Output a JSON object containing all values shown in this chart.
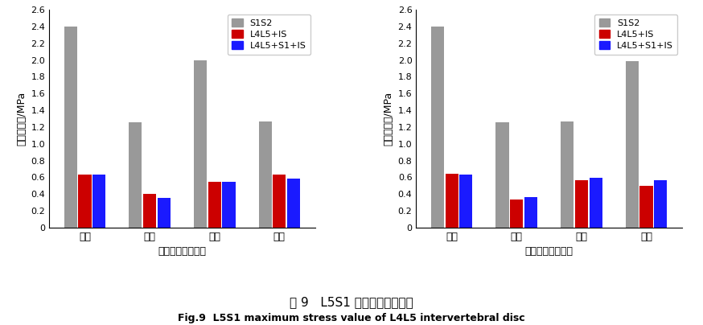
{
  "left_chart": {
    "title": "坐姿下最大应力值",
    "categories": [
      "前屈",
      "后伸",
      "左旋",
      "左弯"
    ],
    "S1S2": [
      2.4,
      1.26,
      2.0,
      1.27
    ],
    "L4L5_IS": [
      0.63,
      0.4,
      0.55,
      0.63
    ],
    "L4L5_S1_IS": [
      0.63,
      0.35,
      0.55,
      0.58
    ]
  },
  "right_chart": {
    "title": "站姿下最大应力值",
    "categories": [
      "前屈",
      "后伸",
      "左旋",
      "左弯"
    ],
    "S1S2": [
      2.4,
      1.26,
      1.27,
      1.99
    ],
    "L4L5_IS": [
      0.64,
      0.33,
      0.56,
      0.5
    ],
    "L4L5_S1_IS": [
      0.63,
      0.36,
      0.59,
      0.56
    ]
  },
  "legend_labels": [
    "S1S2",
    "L4L5+IS",
    "L4L5+S1+IS"
  ],
  "bar_colors": [
    "#999999",
    "#cc0000",
    "#1a1aff"
  ],
  "ylabel": "最大应力值/MPa",
  "ylim": [
    0,
    2.6
  ],
  "yticks": [
    0,
    0.2,
    0.4,
    0.6,
    0.8,
    1.0,
    1.2,
    1.4,
    1.6,
    1.8,
    2.0,
    2.2,
    2.4,
    2.6
  ],
  "fig_title_cn": "图 9   L5S1 椎间盘最大应力值",
  "fig_title_en": "Fig.9  L5S1 maximum stress value of L4L5 intervertebral disc",
  "bar_width": 0.2,
  "bar_gap": 0.02
}
